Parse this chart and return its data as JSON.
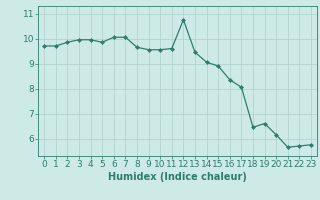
{
  "xlabel": "Humidex (Indice chaleur)",
  "ylabel": "",
  "x_values": [
    0,
    1,
    2,
    3,
    4,
    5,
    6,
    7,
    8,
    9,
    10,
    11,
    12,
    13,
    14,
    15,
    16,
    17,
    18,
    19,
    20,
    21,
    22,
    23
  ],
  "y_values": [
    9.7,
    9.7,
    9.85,
    9.95,
    9.95,
    9.85,
    10.05,
    10.05,
    9.65,
    9.55,
    9.55,
    9.6,
    10.75,
    9.45,
    9.05,
    8.9,
    8.35,
    8.05,
    6.45,
    6.6,
    6.15,
    5.65,
    5.7,
    5.75
  ],
  "line_color": "#2e7d6e",
  "marker": "D",
  "marker_size": 2.0,
  "bg_color": "#ceeae6",
  "grid_color": "#aed0cb",
  "tick_color": "#2e7d6e",
  "label_color": "#2e7d6e",
  "ylim": [
    5.3,
    11.3
  ],
  "xlim": [
    -0.5,
    23.5
  ],
  "yticks": [
    6,
    7,
    8,
    9,
    10,
    11
  ],
  "xticks": [
    0,
    1,
    2,
    3,
    4,
    5,
    6,
    7,
    8,
    9,
    10,
    11,
    12,
    13,
    14,
    15,
    16,
    17,
    18,
    19,
    20,
    21,
    22,
    23
  ],
  "font_size": 6.5,
  "xlabel_fontsize": 7.0,
  "lw": 0.9
}
